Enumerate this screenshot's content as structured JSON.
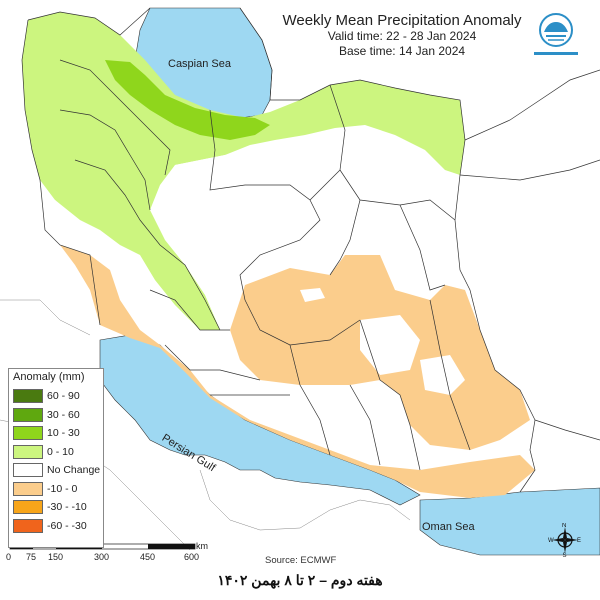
{
  "title": {
    "main": "Weekly Mean Precipitation Anomaly",
    "valid_time": "Valid time:  22 - 28 Jan 2024",
    "base_time": "Base time: 14 Jan 2024"
  },
  "seas": {
    "caspian": "Caspian Sea",
    "persian_gulf": "Persian Gulf",
    "oman": "Oman Sea"
  },
  "legend": {
    "title": "Anomaly (mm)",
    "items": [
      {
        "label": "60 - 90",
        "color": "#4a7a10"
      },
      {
        "label": "30 - 60",
        "color": "#5fa80f"
      },
      {
        "label": "10 - 30",
        "color": "#8fd61c"
      },
      {
        "label": "0 - 10",
        "color": "#ccf57f"
      },
      {
        "label": "No Change",
        "color": "#ffffff"
      },
      {
        "label": "-10 - 0",
        "color": "#fbcd8c"
      },
      {
        "label": "-30 - -10",
        "color": "#f7a51a"
      },
      {
        "label": "-60 - -30",
        "color": "#f0641c"
      }
    ]
  },
  "scale": {
    "ticks": [
      "0",
      "75",
      "150",
      "300",
      "450",
      "600"
    ],
    "unit": "km"
  },
  "compass": {
    "n": "N",
    "s": "S",
    "e": "E",
    "w": "W"
  },
  "source": "Source: ECMWF",
  "footer": "هفته دوم – ۲ تا ۸ بهمن ۱۴۰۲",
  "colors": {
    "sea": "#9ed8f2",
    "border": "#333333",
    "land": "#ffffff",
    "wet_light": "#ccf57f",
    "wet_mid": "#8fd61c",
    "dry_light": "#fbcd8c"
  }
}
